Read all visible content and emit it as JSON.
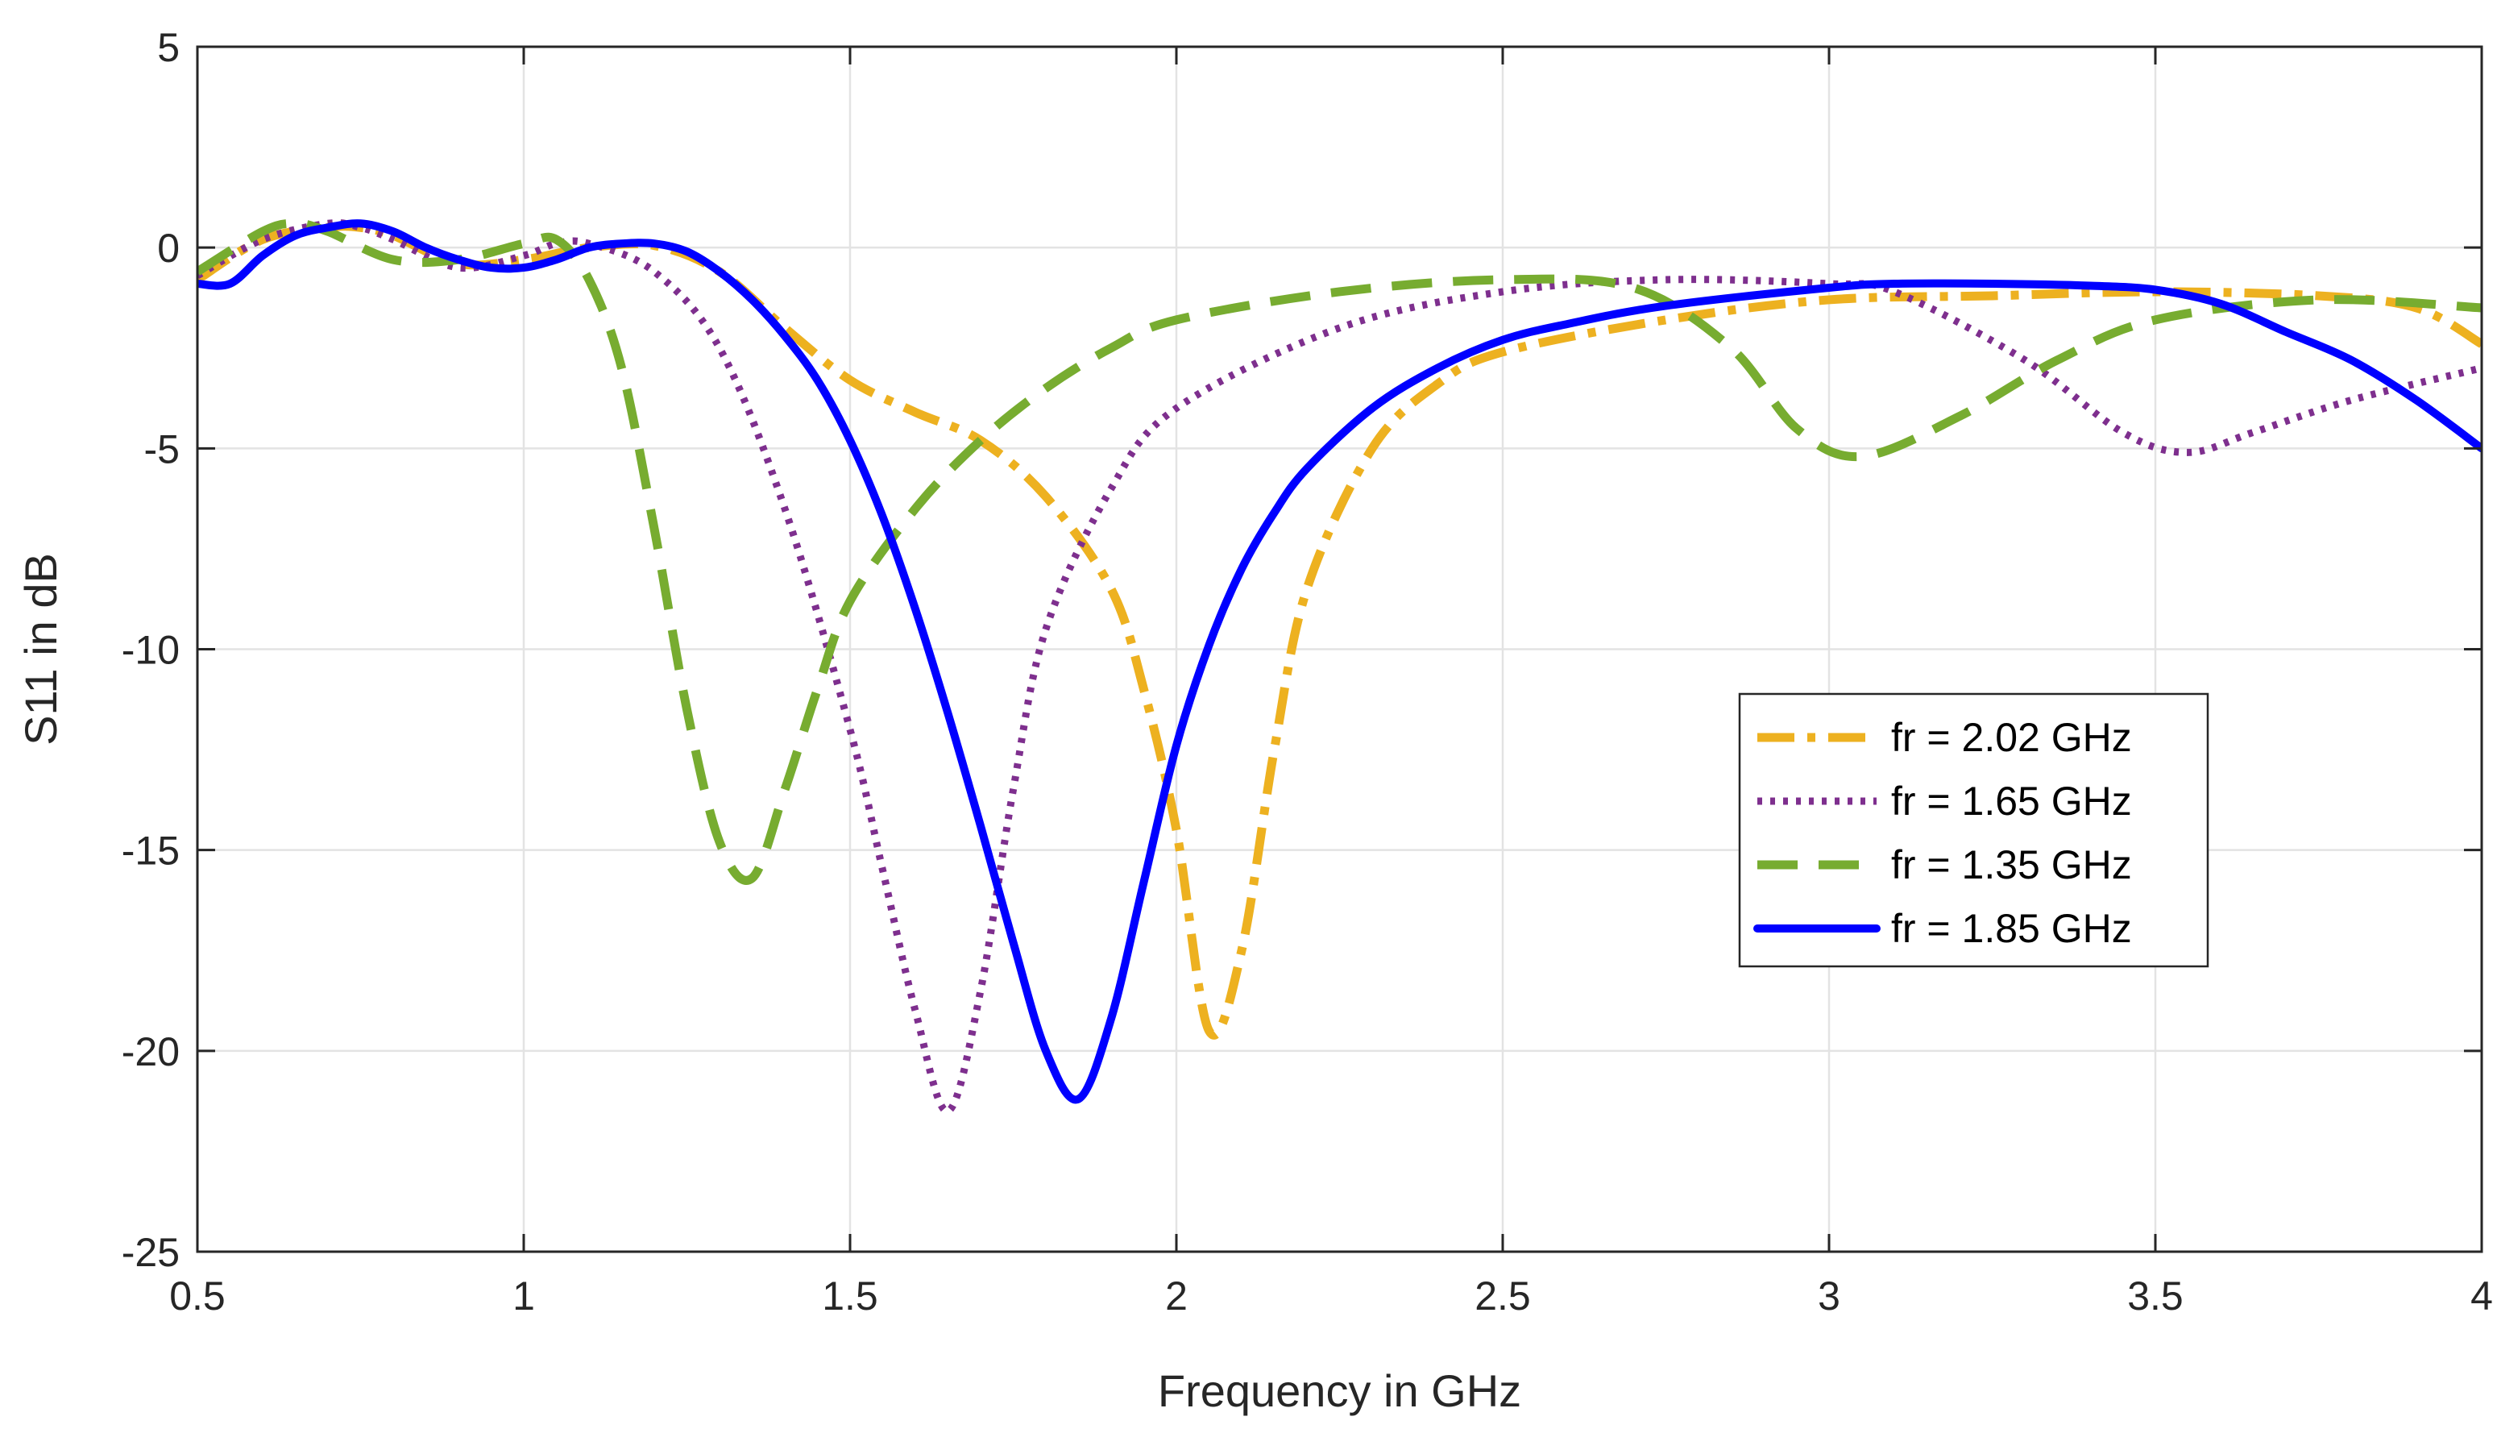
{
  "chart_data": {
    "type": "line",
    "title": "",
    "xlabel": "Frequency in GHz",
    "ylabel": "S11 in dB",
    "xlim": [
      0.5,
      4
    ],
    "ylim": [
      -25,
      5
    ],
    "xticks": [
      0.5,
      1,
      1.5,
      2,
      2.5,
      3,
      3.5,
      4
    ],
    "xtick_labels": [
      "0.5",
      "1",
      "1.5",
      "2",
      "2.5",
      "3",
      "3.5",
      "4"
    ],
    "yticks": [
      5,
      0,
      -5,
      -10,
      -15,
      -20,
      -25
    ],
    "ytick_labels": [
      "5",
      "0",
      "-5",
      "-10",
      "-15",
      "-20",
      "-25"
    ],
    "grid": true,
    "legend_position": "center-right",
    "series": [
      {
        "name": "fr = 2.02 GHz",
        "color": "#EDB120",
        "style": "dashdot",
        "points": [
          [
            0.5,
            -0.8
          ],
          [
            0.6,
            0.2
          ],
          [
            0.7,
            0.5
          ],
          [
            0.75,
            0.5
          ],
          [
            0.8,
            0.3
          ],
          [
            0.9,
            -0.4
          ],
          [
            1.0,
            -0.3
          ],
          [
            1.1,
            0.0
          ],
          [
            1.2,
            0.05
          ],
          [
            1.3,
            -0.6
          ],
          [
            1.4,
            -2.0
          ],
          [
            1.5,
            -3.3
          ],
          [
            1.6,
            -4.1
          ],
          [
            1.7,
            -4.8
          ],
          [
            1.8,
            -6.2
          ],
          [
            1.9,
            -8.5
          ],
          [
            1.95,
            -11.0
          ],
          [
            2.0,
            -14.5
          ],
          [
            2.05,
            -19.5
          ],
          [
            2.1,
            -17.5
          ],
          [
            2.15,
            -12.5
          ],
          [
            2.2,
            -8.5
          ],
          [
            2.3,
            -5.0
          ],
          [
            2.4,
            -3.4
          ],
          [
            2.5,
            -2.6
          ],
          [
            2.75,
            -1.8
          ],
          [
            3.0,
            -1.3
          ],
          [
            3.25,
            -1.2
          ],
          [
            3.5,
            -1.1
          ],
          [
            3.75,
            -1.2
          ],
          [
            3.9,
            -1.5
          ],
          [
            4.0,
            -2.4
          ]
        ]
      },
      {
        "name": "fr = 1.65 GHz",
        "color": "#7E2F8E",
        "style": "dotted",
        "points": [
          [
            0.5,
            -0.7
          ],
          [
            0.6,
            0.2
          ],
          [
            0.7,
            0.6
          ],
          [
            0.75,
            0.5
          ],
          [
            0.8,
            0.2
          ],
          [
            0.9,
            -0.5
          ],
          [
            1.0,
            -0.2
          ],
          [
            1.05,
            0.1
          ],
          [
            1.1,
            0.1
          ],
          [
            1.2,
            -0.6
          ],
          [
            1.3,
            -2.5
          ],
          [
            1.4,
            -6.5
          ],
          [
            1.5,
            -12.0
          ],
          [
            1.55,
            -15.5
          ],
          [
            1.6,
            -19.0
          ],
          [
            1.65,
            -21.5
          ],
          [
            1.7,
            -18.5
          ],
          [
            1.75,
            -13.5
          ],
          [
            1.8,
            -9.5
          ],
          [
            1.9,
            -6.0
          ],
          [
            2.0,
            -4.0
          ],
          [
            2.25,
            -2.0
          ],
          [
            2.5,
            -1.1
          ],
          [
            2.75,
            -0.8
          ],
          [
            3.0,
            -0.9
          ],
          [
            3.1,
            -1.1
          ],
          [
            3.3,
            -2.8
          ],
          [
            3.45,
            -4.6
          ],
          [
            3.55,
            -5.1
          ],
          [
            3.65,
            -4.6
          ],
          [
            3.8,
            -3.8
          ],
          [
            4.0,
            -3.0
          ]
        ]
      },
      {
        "name": "fr = 1.35 GHz",
        "color": "#77AC30",
        "style": "dashed",
        "points": [
          [
            0.5,
            -0.6
          ],
          [
            0.6,
            0.4
          ],
          [
            0.65,
            0.6
          ],
          [
            0.7,
            0.4
          ],
          [
            0.8,
            -0.3
          ],
          [
            0.9,
            -0.3
          ],
          [
            1.0,
            0.1
          ],
          [
            1.05,
            0.2
          ],
          [
            1.1,
            -0.8
          ],
          [
            1.15,
            -3.0
          ],
          [
            1.2,
            -7.0
          ],
          [
            1.25,
            -11.5
          ],
          [
            1.3,
            -14.8
          ],
          [
            1.35,
            -15.7
          ],
          [
            1.4,
            -13.5
          ],
          [
            1.45,
            -11.0
          ],
          [
            1.5,
            -8.8
          ],
          [
            1.6,
            -6.5
          ],
          [
            1.7,
            -4.8
          ],
          [
            1.8,
            -3.5
          ],
          [
            1.9,
            -2.5
          ],
          [
            2.0,
            -1.8
          ],
          [
            2.25,
            -1.1
          ],
          [
            2.5,
            -0.8
          ],
          [
            2.7,
            -1.0
          ],
          [
            2.85,
            -2.5
          ],
          [
            2.95,
            -4.5
          ],
          [
            3.05,
            -5.2
          ],
          [
            3.2,
            -4.2
          ],
          [
            3.35,
            -2.8
          ],
          [
            3.5,
            -1.8
          ],
          [
            3.75,
            -1.3
          ],
          [
            4.0,
            -1.5
          ]
        ]
      },
      {
        "name": "fr = 1.85 GHz",
        "color": "#0000FF",
        "style": "solid",
        "points": [
          [
            0.5,
            -0.9
          ],
          [
            0.55,
            -0.9
          ],
          [
            0.6,
            -0.2
          ],
          [
            0.65,
            0.3
          ],
          [
            0.7,
            0.5
          ],
          [
            0.75,
            0.6
          ],
          [
            0.8,
            0.4
          ],
          [
            0.85,
            0.0
          ],
          [
            0.9,
            -0.3
          ],
          [
            0.95,
            -0.5
          ],
          [
            1.0,
            -0.5
          ],
          [
            1.05,
            -0.3
          ],
          [
            1.1,
            0.0
          ],
          [
            1.15,
            0.1
          ],
          [
            1.2,
            0.1
          ],
          [
            1.25,
            -0.1
          ],
          [
            1.3,
            -0.6
          ],
          [
            1.35,
            -1.3
          ],
          [
            1.4,
            -2.2
          ],
          [
            1.45,
            -3.3
          ],
          [
            1.5,
            -4.8
          ],
          [
            1.55,
            -6.7
          ],
          [
            1.6,
            -9.0
          ],
          [
            1.65,
            -11.6
          ],
          [
            1.7,
            -14.4
          ],
          [
            1.75,
            -17.3
          ],
          [
            1.8,
            -20.0
          ],
          [
            1.85,
            -21.2
          ],
          [
            1.9,
            -19.2
          ],
          [
            1.95,
            -15.8
          ],
          [
            2.0,
            -12.4
          ],
          [
            2.05,
            -9.9
          ],
          [
            2.1,
            -8.0
          ],
          [
            2.15,
            -6.6
          ],
          [
            2.2,
            -5.5
          ],
          [
            2.3,
            -4.0
          ],
          [
            2.4,
            -3.0
          ],
          [
            2.5,
            -2.3
          ],
          [
            2.6,
            -1.9
          ],
          [
            2.75,
            -1.45
          ],
          [
            3.0,
            -1.0
          ],
          [
            3.1,
            -0.9
          ],
          [
            3.25,
            -0.9
          ],
          [
            3.4,
            -0.95
          ],
          [
            3.5,
            -1.05
          ],
          [
            3.6,
            -1.4
          ],
          [
            3.7,
            -2.1
          ],
          [
            3.8,
            -2.8
          ],
          [
            3.9,
            -3.8
          ],
          [
            4.0,
            -5.0
          ]
        ]
      }
    ]
  }
}
